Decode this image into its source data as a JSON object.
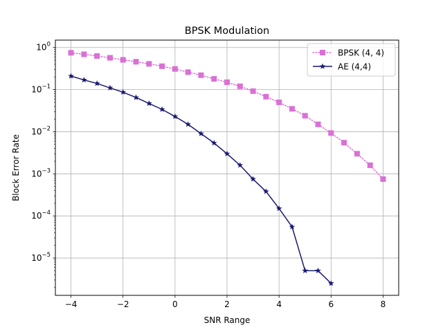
{
  "chart_data": {
    "type": "line",
    "title": "BPSK Modulation",
    "xlabel": "SNR Range",
    "ylabel": "Block Error Rate",
    "y_scale": "log",
    "xlim": [
      -4.6,
      8.6
    ],
    "ylim": [
      1.3e-06,
      1.5
    ],
    "x_ticks": [
      -4,
      -2,
      0,
      2,
      4,
      6,
      8
    ],
    "x_tick_labels": [
      "−4",
      "−2",
      "0",
      "2",
      "4",
      "6",
      "8"
    ],
    "y_ticks": [
      1,
      0.1,
      0.01,
      0.001,
      0.0001,
      1e-05
    ],
    "y_tick_labels": [
      {
        "base": "10",
        "exp": "0"
      },
      {
        "base": "10",
        "exp": "−1"
      },
      {
        "base": "10",
        "exp": "−2"
      },
      {
        "base": "10",
        "exp": "−3"
      },
      {
        "base": "10",
        "exp": "−4"
      },
      {
        "base": "10",
        "exp": "−5"
      }
    ],
    "grid": true,
    "legend_position": "top-right",
    "series": [
      {
        "name": "BPSK (4, 4)",
        "color": "#da70d6",
        "line_style": "dotted",
        "marker": "square",
        "x": [
          -4,
          -3.5,
          -3,
          -2.5,
          -2,
          -1.5,
          -1,
          -0.5,
          0,
          0.5,
          1,
          1.5,
          2,
          2.5,
          3,
          3.5,
          4,
          4.5,
          5,
          5.5,
          6,
          6.5,
          7,
          7.5,
          8
        ],
        "y": [
          0.75,
          0.69,
          0.63,
          0.57,
          0.51,
          0.46,
          0.41,
          0.36,
          0.31,
          0.26,
          0.22,
          0.18,
          0.15,
          0.12,
          0.092,
          0.068,
          0.05,
          0.035,
          0.024,
          0.015,
          0.0093,
          0.0055,
          0.003,
          0.0016,
          0.00075
        ]
      },
      {
        "name": "AE (4,4)",
        "color": "#191970",
        "line_style": "solid",
        "marker": "star",
        "x": [
          -4,
          -3.5,
          -3,
          -2.5,
          -2,
          -1.5,
          -1,
          -0.5,
          0,
          0.5,
          1,
          1.5,
          2,
          2.5,
          3,
          3.5,
          4,
          4.5,
          5,
          5.5,
          6
        ],
        "y": [
          0.21,
          0.17,
          0.14,
          0.11,
          0.087,
          0.065,
          0.047,
          0.034,
          0.023,
          0.015,
          0.009,
          0.0054,
          0.003,
          0.0016,
          0.00075,
          0.00038,
          0.00015,
          5.5e-05,
          5e-06,
          5e-06,
          2.5e-06
        ]
      }
    ]
  }
}
